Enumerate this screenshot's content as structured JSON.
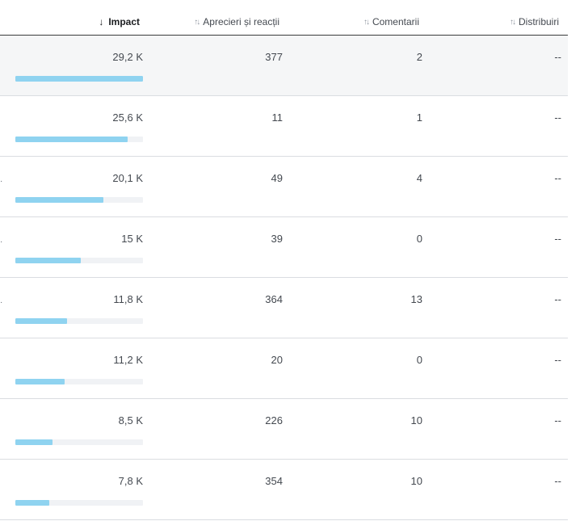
{
  "header": {
    "columns": [
      {
        "key": "impact",
        "label": "Impact",
        "sort": "down-arrow-icon",
        "active": true
      },
      {
        "key": "likes",
        "label": "Aprecieri și reacții",
        "sort": "sort-updown-icon",
        "active": false
      },
      {
        "key": "comments",
        "label": "Comentarii",
        "sort": "sort-updown-icon",
        "active": false
      },
      {
        "key": "shares",
        "label": "Distribuiri",
        "sort": "sort-updown-icon",
        "active": false
      }
    ]
  },
  "colors": {
    "bar_fill": "#8fd3f0",
    "bar_track": "#f0f2f5",
    "selected_row": "#f5f6f7"
  },
  "rows": [
    {
      "impact": "29,2 K",
      "impact_fraction": 1.0,
      "likes": "377",
      "comments": "2",
      "shares": "--",
      "edge": "",
      "selected": true
    },
    {
      "impact": "25,6 K",
      "impact_fraction": 0.877,
      "likes": "11",
      "comments": "1",
      "shares": "--",
      "edge": "",
      "selected": false
    },
    {
      "impact": "20,1 K",
      "impact_fraction": 0.688,
      "likes": "49",
      "comments": "4",
      "shares": "--",
      "edge": "·",
      "selected": false
    },
    {
      "impact": "15 K",
      "impact_fraction": 0.514,
      "likes": "39",
      "comments": "0",
      "shares": "--",
      "edge": "·",
      "selected": false
    },
    {
      "impact": "11,8 K",
      "impact_fraction": 0.404,
      "likes": "364",
      "comments": "13",
      "shares": "--",
      "edge": "·",
      "selected": false
    },
    {
      "impact": "11,2 K",
      "impact_fraction": 0.384,
      "likes": "20",
      "comments": "0",
      "shares": "--",
      "edge": "",
      "selected": false
    },
    {
      "impact": "8,5 K",
      "impact_fraction": 0.291,
      "likes": "226",
      "comments": "10",
      "shares": "--",
      "edge": "",
      "selected": false
    },
    {
      "impact": "7,8 K",
      "impact_fraction": 0.267,
      "likes": "354",
      "comments": "10",
      "shares": "--",
      "edge": "",
      "selected": false
    }
  ]
}
